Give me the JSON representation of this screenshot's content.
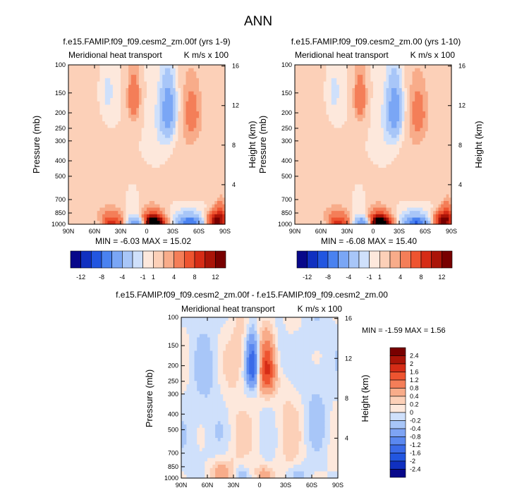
{
  "figure": {
    "main_title": "ANN"
  },
  "colormaps": {
    "main": [
      "#08088a",
      "#1030c0",
      "#2256e0",
      "#4a82f0",
      "#7aa6f5",
      "#a8c6f8",
      "#cfe0fb",
      "#fde8dc",
      "#fcd0b8",
      "#f8ac8a",
      "#f47e58",
      "#ee5430",
      "#d62c16",
      "#aa1408",
      "#780000"
    ],
    "diff": [
      "#08088a",
      "#1030c0",
      "#2256e0",
      "#3a6ae8",
      "#5a88f0",
      "#7ea4f4",
      "#a8c6f8",
      "#cfe0fb",
      "#fde8dc",
      "#fcd0b8",
      "#f8ac8a",
      "#f47e58",
      "#ee5430",
      "#d62c16",
      "#aa1408",
      "#780000"
    ]
  },
  "chart_data": [
    {
      "type": "heatmap",
      "title": "f.e15.FAMIP.f09_f09.cesm2_zm.00f (yrs 1-9)",
      "variable": "Meridional heat transport",
      "units": "K m/s x 100",
      "ylabel": "Pressure (mb)",
      "ylabel_right": "Height (km)",
      "x_ticks": [
        "90N",
        "60N",
        "30N",
        "0",
        "30S",
        "60S",
        "90S"
      ],
      "y_ticks": [
        "100",
        "150",
        "200",
        "250",
        "300",
        "400",
        "500",
        "700",
        "850",
        "1000"
      ],
      "y_right_ticks": [
        "16",
        "12",
        "8",
        "4"
      ],
      "xlim": [
        90,
        -90
      ],
      "ylim": [
        1000,
        100
      ],
      "ylog": true,
      "min_max": "MIN = -6.03  MAX = 15.02",
      "min": -6.03,
      "max": 15.02,
      "colorbar_levels": [
        "-12",
        "-8",
        "-4",
        "-1",
        "1",
        "4",
        "8",
        "12"
      ],
      "colorbar_orientation": "horizontal"
    },
    {
      "type": "heatmap",
      "title": "f.e15.FAMIP.f09_f09.cesm2_zm.00 (yrs 1-10)",
      "variable": "Meridional heat transport",
      "units": "K m/s x 100",
      "ylabel": "Pressure (mb)",
      "ylabel_right": "Height (km)",
      "x_ticks": [
        "90N",
        "60N",
        "30N",
        "0",
        "30S",
        "60S",
        "90S"
      ],
      "y_ticks": [
        "100",
        "150",
        "200",
        "250",
        "300",
        "400",
        "500",
        "700",
        "850",
        "1000"
      ],
      "y_right_ticks": [
        "16",
        "12",
        "8",
        "4"
      ],
      "xlim": [
        90,
        -90
      ],
      "ylim": [
        1000,
        100
      ],
      "ylog": true,
      "min_max": "MIN = -6.08  MAX = 15.40",
      "min": -6.08,
      "max": 15.4,
      "colorbar_levels": [
        "-12",
        "-8",
        "-4",
        "-1",
        "1",
        "4",
        "8",
        "12"
      ],
      "colorbar_orientation": "horizontal"
    },
    {
      "type": "heatmap",
      "title": "f.e15.FAMIP.f09_f09.cesm2_zm.00f - f.e15.FAMIP.f09_f09.cesm2_zm.00",
      "variable": "Meridional heat transport",
      "units": "K m/s x 100",
      "ylabel": "Pressure (mb)",
      "ylabel_right": "Height (km)",
      "x_ticks": [
        "90N",
        "60N",
        "30N",
        "0",
        "30S",
        "60S",
        "90S"
      ],
      "y_ticks": [
        "100",
        "150",
        "200",
        "250",
        "300",
        "400",
        "500",
        "700",
        "850",
        "1000"
      ],
      "y_right_ticks": [
        "16",
        "12",
        "8",
        "4"
      ],
      "xlim": [
        90,
        -90
      ],
      "ylim": [
        1000,
        100
      ],
      "ylog": true,
      "min_max": "MIN = -1.59  MAX =  1.56",
      "min": -1.59,
      "max": 1.56,
      "colorbar_levels": [
        "2.4",
        "2",
        "1.6",
        "1.2",
        "0.8",
        "0.4",
        "0.2",
        "0",
        "-0.2",
        "-0.4",
        "-0.8",
        "-1.2",
        "-1.6",
        "-2",
        "-2.4"
      ],
      "colorbar_orientation": "vertical"
    }
  ]
}
